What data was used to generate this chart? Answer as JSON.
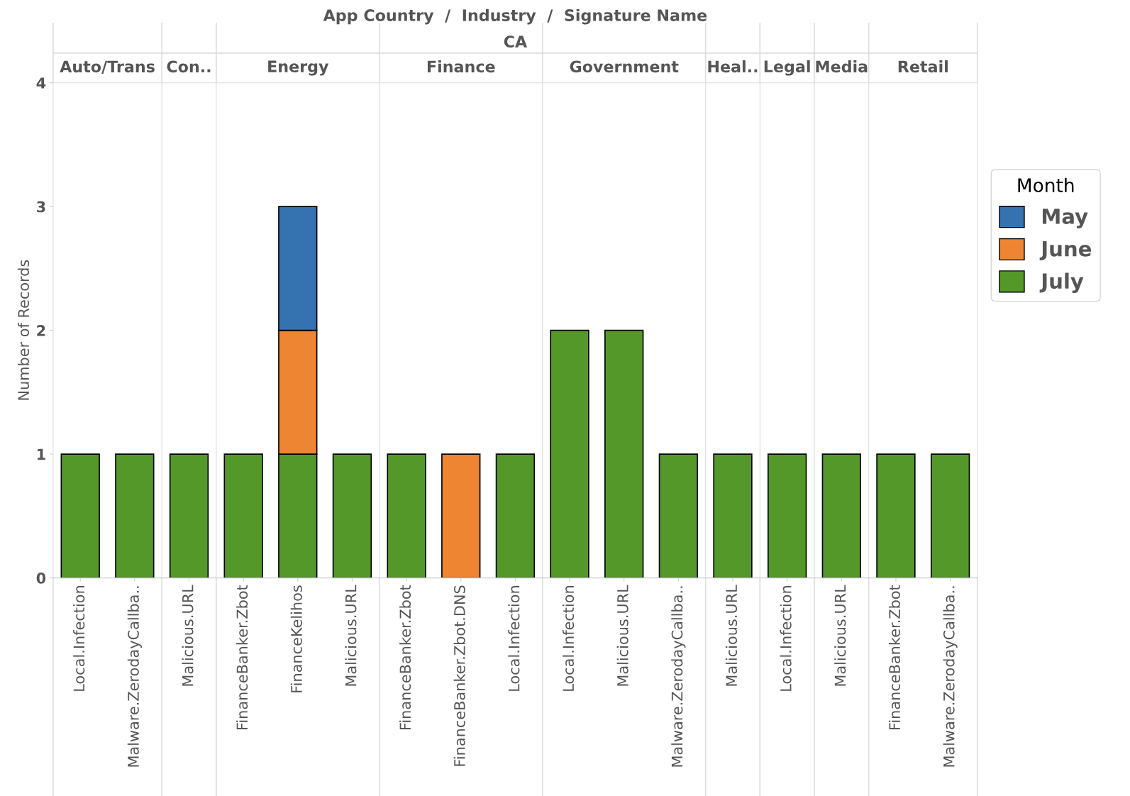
{
  "chart_data": [
    {
      "type": "bar",
      "title": "Auto/Trans",
      "ylabel": "Number of Records",
      "stacked": true,
      "grid": false,
      "annotations": [
        "App Country  /  Industry  /  Signature Name",
        "CA"
      ],
      "categories": [
        "Local.Infection",
        "Malware.ZerodayCallba.."
      ],
      "series": [
        {
          "color": "#54982a",
          "values": [
            1,
            1
          ]
        }
      ],
      "ylim": [
        0,
        4
      ],
      "yticks": [
        0,
        1,
        2,
        3,
        4
      ]
    },
    {
      "type": "bar",
      "title": "Con..",
      "stacked": true,
      "grid": false,
      "tick_labels": "x",
      "categories": [
        "Malicious.URL"
      ],
      "series": [
        {
          "color": "#54982a",
          "values": [
            1
          ]
        }
      ],
      "ylim": [
        0,
        4
      ],
      "yticks": [
        0,
        1,
        2,
        3,
        4
      ]
    },
    {
      "type": "bar",
      "title": "Energy",
      "stacked": true,
      "grid": false,
      "tick_labels": "x",
      "legend": "right",
      "legend_title": "Month",
      "categories": [
        "FinanceBanker.Zbot",
        "FinanceKelihos",
        "Malicious.URL"
      ],
      "series": [
        {
          "name": "July",
          "color": "#54982a",
          "values": [
            1,
            1,
            1
          ]
        },
        {
          "name": "June",
          "color": "#ee8532",
          "values": [
            null,
            1,
            null
          ]
        },
        {
          "name": "May",
          "color": "#3572b0",
          "values": [
            null,
            1,
            null
          ]
        }
      ],
      "ylim": [
        0,
        4
      ],
      "yticks": [
        0,
        1,
        2,
        3,
        4
      ]
    },
    {
      "type": "bar",
      "title": "Finance",
      "stacked": true,
      "grid": false,
      "tick_labels": "x",
      "categories": [
        "FinanceBanker.Zbot",
        "FinanceBanker.Zbot.DNS",
        "Local.Infection"
      ],
      "series": [
        {
          "color": "#54982a",
          "values": [
            1,
            null,
            1
          ]
        },
        {
          "color": "#ee8532",
          "values": [
            null,
            1,
            null
          ]
        }
      ],
      "ylim": [
        0,
        4
      ],
      "yticks": [
        0,
        1,
        2,
        3,
        4
      ]
    },
    {
      "type": "bar",
      "title": "Government",
      "stacked": true,
      "grid": false,
      "tick_labels": "x",
      "categories": [
        "Local.Infection",
        "Malicious.URL",
        "Malware.ZerodayCallba.."
      ],
      "series": [
        {
          "color": "#54982a",
          "values": [
            2,
            2,
            1
          ]
        }
      ],
      "ylim": [
        0,
        4
      ],
      "yticks": [
        0,
        1,
        2,
        3,
        4
      ]
    },
    {
      "type": "bar",
      "title": "Heal..",
      "stacked": true,
      "grid": false,
      "tick_labels": "x",
      "categories": [
        "Malicious.URL"
      ],
      "series": [
        {
          "color": "#54982a",
          "values": [
            1
          ]
        }
      ],
      "ylim": [
        0,
        4
      ],
      "yticks": [
        0,
        1,
        2,
        3,
        4
      ]
    },
    {
      "type": "bar",
      "title": "Legal",
      "stacked": true,
      "grid": false,
      "tick_labels": "x",
      "categories": [
        "Local.Infection"
      ],
      "series": [
        {
          "color": "#54982a",
          "values": [
            1
          ]
        }
      ],
      "ylim": [
        0,
        4
      ],
      "yticks": [
        0,
        1,
        2,
        3,
        4
      ]
    },
    {
      "type": "bar",
      "title": "Media",
      "stacked": true,
      "grid": false,
      "tick_labels": "x",
      "categories": [
        "Malicious.URL"
      ],
      "series": [
        {
          "color": "#54982a",
          "values": [
            1
          ]
        }
      ],
      "ylim": [
        0,
        4
      ],
      "yticks": [
        0,
        1,
        2,
        3,
        4
      ]
    },
    {
      "type": "bar",
      "title": "Retail",
      "stacked": true,
      "grid": false,
      "tick_labels": "x",
      "categories": [
        "FinanceBanker.Zbot",
        "Malware.ZerodayCallba.."
      ],
      "series": [
        {
          "color": "#54982a",
          "values": [
            1,
            1
          ]
        }
      ],
      "ylim": [
        0,
        4
      ],
      "yticks": [
        0,
        1,
        2,
        3,
        4
      ]
    }
  ]
}
